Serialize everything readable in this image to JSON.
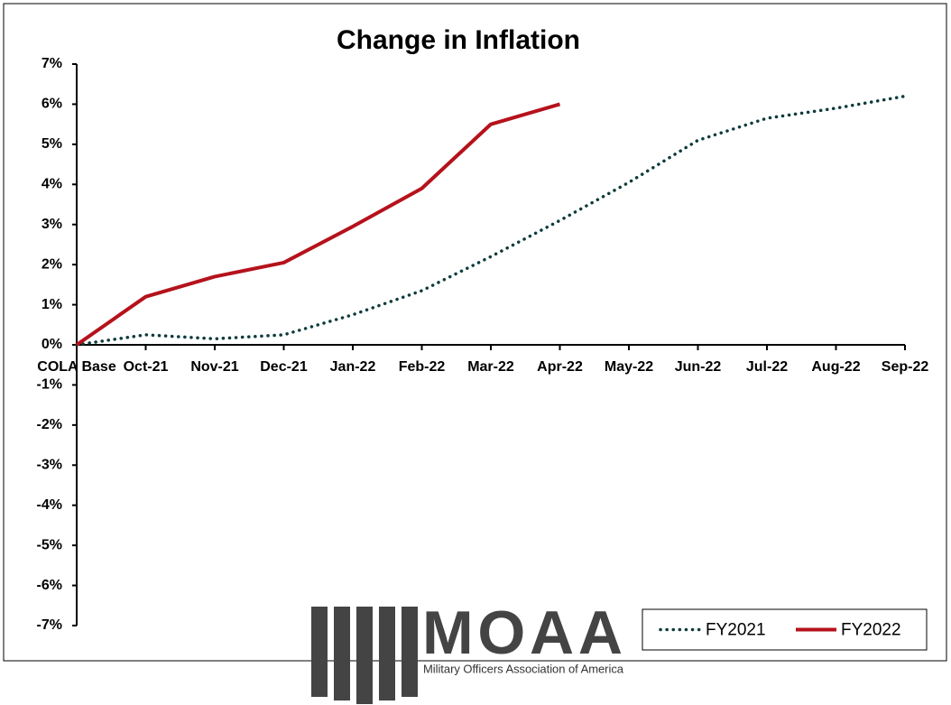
{
  "chart_data": {
    "type": "line",
    "title": "Change in Inflation",
    "categories": [
      "COLA Base",
      "Oct-21",
      "Nov-21",
      "Dec-21",
      "Jan-22",
      "Feb-22",
      "Mar-22",
      "Apr-22",
      "May-22",
      "Jun-22",
      "Jul-22",
      "Aug-22",
      "Sep-22"
    ],
    "series": [
      {
        "name": "FY2021",
        "color": "#0d3b3b",
        "dash": "dotted",
        "values": [
          0,
          0.25,
          0.15,
          0.25,
          0.75,
          1.35,
          2.2,
          3.1,
          4.05,
          5.1,
          5.65,
          5.9,
          6.2
        ]
      },
      {
        "name": "FY2022",
        "color": "#b5121b",
        "dash": "solid",
        "values": [
          0,
          1.2,
          1.7,
          2.05,
          2.95,
          3.9,
          5.5,
          6.0,
          null,
          null,
          null,
          null,
          null
        ]
      }
    ],
    "ylim": [
      -7,
      7
    ],
    "yticks": [
      {
        "value": 7,
        "label": "7%"
      },
      {
        "value": 6,
        "label": "6%"
      },
      {
        "value": 5,
        "label": "5%"
      },
      {
        "value": 4,
        "label": "4%"
      },
      {
        "value": 3,
        "label": "3%"
      },
      {
        "value": 2,
        "label": "2%"
      },
      {
        "value": 1,
        "label": "1%"
      },
      {
        "value": 0,
        "label": "0%"
      },
      {
        "value": -1,
        "label": "-1%"
      },
      {
        "value": -2,
        "label": "-2%"
      },
      {
        "value": -3,
        "label": "-3%"
      },
      {
        "value": -4,
        "label": "-4%"
      },
      {
        "value": -5,
        "label": "-5%"
      },
      {
        "value": -6,
        "label": "-6%"
      },
      {
        "value": -7,
        "label": "-7%"
      }
    ],
    "grid": false,
    "legend": "lower right"
  },
  "logo": {
    "name": "MOAA",
    "tagline": "Military Officers Association of America"
  }
}
